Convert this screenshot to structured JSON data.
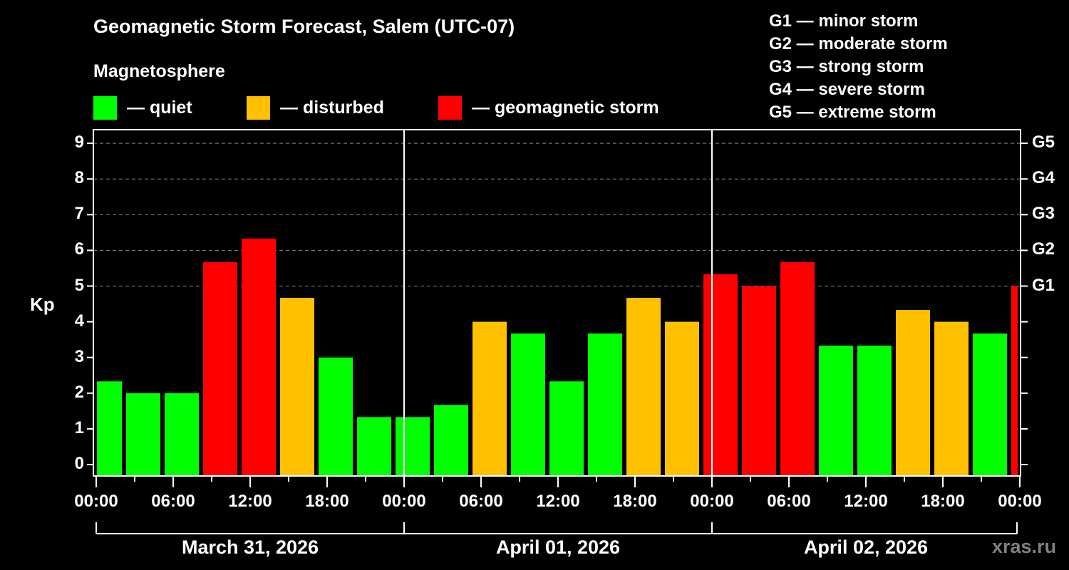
{
  "title": "Geomagnetic Storm Forecast, Salem (UTC-07)",
  "subtitle": "Magnetosphere",
  "legend": [
    {
      "label": "— quiet",
      "color": "#00ff00"
    },
    {
      "label": "— disturbed",
      "color": "#ffc000"
    },
    {
      "label": "— geomagnetic storm",
      "color": "#ff0000"
    }
  ],
  "g_legend": [
    "G1 — minor storm",
    "G2 — moderate storm",
    "G3 — strong storm",
    "G4 — severe storm",
    "G5 — extreme storm"
  ],
  "y_axis_label": "Kp",
  "y_ticks": [
    "0",
    "1",
    "2",
    "3",
    "4",
    "5",
    "6",
    "7",
    "8",
    "9"
  ],
  "g_ticks": [
    "G1",
    "G2",
    "G3",
    "G4",
    "G5"
  ],
  "x_ticks": [
    "00:00",
    "06:00",
    "12:00",
    "18:00",
    "00:00",
    "06:00",
    "12:00",
    "18:00",
    "00:00",
    "06:00",
    "12:00",
    "18:00",
    "00:00"
  ],
  "dates": [
    "March 31, 2026",
    "April 01, 2026",
    "April 02, 2026"
  ],
  "watermark": "xras.ru",
  "chart_data": {
    "type": "bar",
    "title": "Geomagnetic Storm Forecast, Salem (UTC-07)",
    "xlabel": "",
    "ylabel": "Kp",
    "ylim": [
      0,
      9
    ],
    "grid": "dashed horizontal at Kp 5-9",
    "secondary_y_labels": {
      "5": "G1",
      "6": "G2",
      "7": "G3",
      "8": "G4",
      "9": "G5"
    },
    "categories": [
      "Mar31 00:00",
      "Mar31 02:00",
      "Mar31 05:00",
      "Mar31 08:00",
      "Mar31 11:00",
      "Mar31 14:00",
      "Mar31 17:00",
      "Mar31 20:00",
      "Mar31 23:00",
      "Apr01 02:00",
      "Apr01 05:00",
      "Apr01 08:00",
      "Apr01 11:00",
      "Apr01 14:00",
      "Apr01 17:00",
      "Apr01 20:00",
      "Apr01 23:00",
      "Apr02 02:00",
      "Apr02 05:00",
      "Apr02 08:00",
      "Apr02 11:00",
      "Apr02 14:00",
      "Apr02 17:00",
      "Apr02 20:00",
      "Apr02 23:00"
    ],
    "values": [
      2.33,
      2.0,
      2.0,
      5.67,
      6.33,
      4.67,
      3.0,
      1.33,
      1.33,
      1.67,
      4.0,
      3.67,
      2.33,
      3.67,
      4.67,
      4.0,
      5.33,
      5.0,
      5.67,
      3.33,
      3.33,
      4.33,
      4.0,
      3.67,
      5.0
    ],
    "status": [
      "quiet",
      "quiet",
      "quiet",
      "storm",
      "storm",
      "disturbed",
      "quiet",
      "quiet",
      "quiet",
      "quiet",
      "disturbed",
      "quiet",
      "quiet",
      "quiet",
      "disturbed",
      "disturbed",
      "storm",
      "storm",
      "storm",
      "quiet",
      "quiet",
      "disturbed",
      "disturbed",
      "quiet",
      "storm"
    ],
    "colors": {
      "quiet": "#00ff00",
      "disturbed": "#ffc000",
      "storm": "#ff0000"
    },
    "legend": [
      "quiet",
      "disturbed",
      "geomagnetic storm"
    ]
  }
}
